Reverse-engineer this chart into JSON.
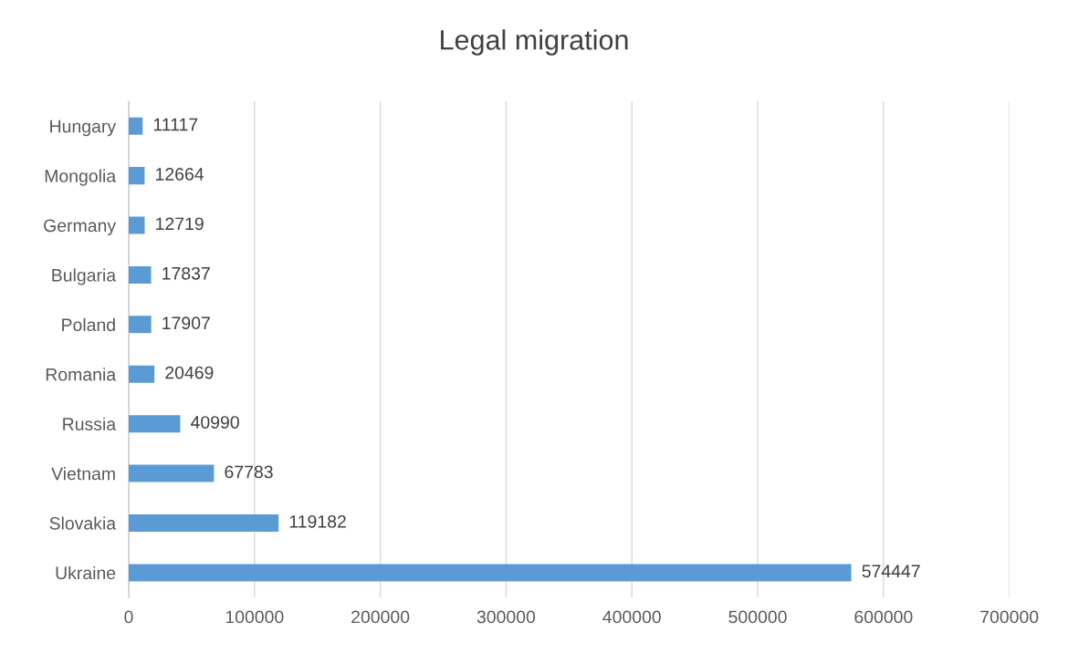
{
  "chart_data": {
    "type": "bar",
    "orientation": "horizontal",
    "title": "Legal migration",
    "categories": [
      "Hungary",
      "Mongolia",
      "Germany",
      "Bulgaria",
      "Poland",
      "Romania",
      "Russia",
      "Vietnam",
      "Slovakia",
      "Ukraine"
    ],
    "values": [
      11117,
      12664,
      12719,
      17837,
      17907,
      20469,
      40990,
      67783,
      119182,
      574447
    ],
    "color": "#5b9bd5",
    "xlim": [
      0,
      700000
    ],
    "xticks": [
      0,
      100000,
      200000,
      300000,
      400000,
      500000,
      600000,
      700000
    ],
    "grid": "x",
    "data_labels": true,
    "legend": false
  }
}
